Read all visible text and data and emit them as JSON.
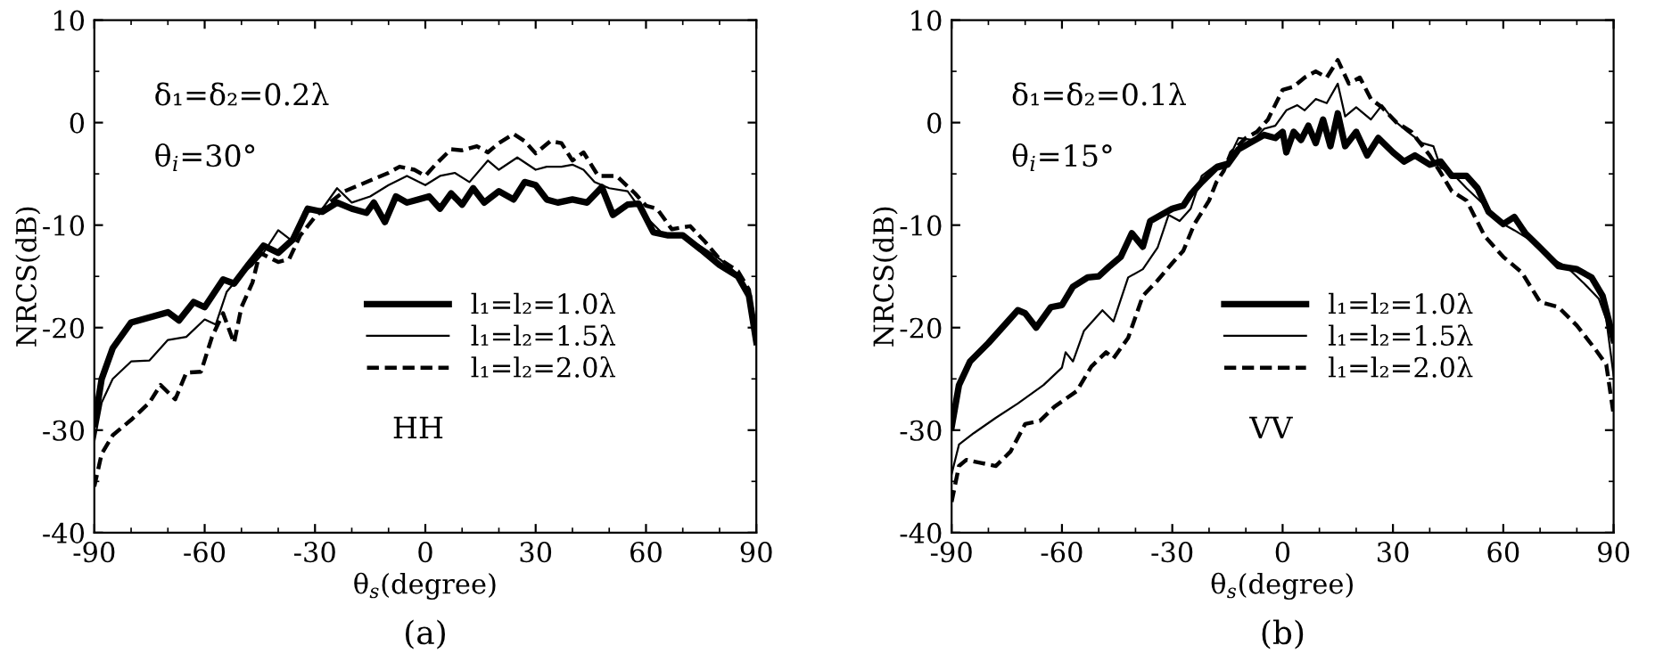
{
  "chart_data": [
    {
      "type": "line",
      "xlabel": "θ$_{s}$(degree)",
      "ylabel": "NRCS(dB)",
      "xlim": [
        -90,
        90
      ],
      "ylim": [
        -40,
        10
      ],
      "xticks": [
        -90,
        -60,
        -30,
        0,
        30,
        60,
        90
      ],
      "yticks": [
        -40,
        -30,
        -20,
        -10,
        0,
        10
      ],
      "grid": false,
      "legend": "center",
      "marker": "none",
      "annotations": [
        "δ₁=δ₂=0.2λ",
        "θ$_{i}$=30°",
        "HH",
        "(a)"
      ],
      "series": [
        {
          "name": "l₁=l₂=1.0λ",
          "color": "#000000",
          "line_style": "solid",
          "x": [
            -90,
            -88,
            -85,
            -80,
            -75,
            -70,
            -67,
            -63,
            -60,
            -55,
            -52,
            -48,
            -44,
            -40,
            -36,
            -32,
            -28,
            -24,
            -20,
            -16,
            -14,
            -11,
            -8,
            -5,
            -2,
            1,
            4,
            7,
            10,
            13,
            16,
            20,
            24,
            27,
            30,
            33,
            36,
            40,
            44,
            48,
            51,
            55,
            58,
            62,
            66,
            70,
            75,
            80,
            85,
            88,
            90
          ],
          "values": [
            -29.4,
            -25,
            -22,
            -19.5,
            -19,
            -18.5,
            -19.3,
            -17.5,
            -18,
            -15.3,
            -15.7,
            -13.8,
            -12,
            -12.7,
            -11.4,
            -8.4,
            -8.7,
            -7.8,
            -8.4,
            -8.8,
            -7.8,
            -9.7,
            -7.2,
            -7.8,
            -7.5,
            -7.2,
            -8.4,
            -6.9,
            -8,
            -6.4,
            -7.8,
            -6.7,
            -7.5,
            -5.8,
            -6.1,
            -7.5,
            -7.8,
            -7.5,
            -7.8,
            -6.3,
            -9,
            -8,
            -7.9,
            -10.7,
            -11,
            -11,
            -12.4,
            -13.9,
            -15,
            -16.9,
            -21.4
          ]
        },
        {
          "name": "l₁=l₂=1.5λ",
          "color": "#000000",
          "line_style": "solid",
          "x": [
            -90,
            -88,
            -85,
            -80,
            -75,
            -70,
            -65,
            -60,
            -57,
            -54,
            -50,
            -47,
            -44,
            -40,
            -36,
            -33,
            -28,
            -24,
            -20,
            -15,
            -10,
            -5,
            0,
            4,
            8,
            12,
            17,
            20,
            25,
            30,
            33,
            37,
            40,
            43,
            46,
            50,
            55,
            60,
            65,
            70,
            75,
            80,
            85,
            88,
            90
          ],
          "values": [
            -31.1,
            -27.3,
            -25,
            -23.3,
            -23.2,
            -21.2,
            -20.9,
            -19.2,
            -19.7,
            -16.5,
            -14.8,
            -13.9,
            -12.7,
            -10.5,
            -11.6,
            -8.7,
            -8.4,
            -6.4,
            -7.8,
            -7.2,
            -6.1,
            -5.2,
            -6.1,
            -5.2,
            -4.9,
            -5.8,
            -3.7,
            -4.6,
            -3.4,
            -4.6,
            -4.3,
            -4.3,
            -4.1,
            -4.6,
            -5.8,
            -6.4,
            -6.7,
            -9.2,
            -11,
            -11,
            -12.1,
            -13.3,
            -14.8,
            -16.9,
            -20.9
          ]
        },
        {
          "name": "l₁=l₂=2.0λ",
          "color": "#000000",
          "line_style": "dashed",
          "x": [
            -90,
            -88,
            -85,
            -80,
            -75,
            -72,
            -68,
            -65,
            -61,
            -58,
            -55,
            -52,
            -50,
            -47,
            -45,
            -40,
            -37,
            -34,
            -30,
            -26,
            -22,
            -18,
            -14,
            -10,
            -7,
            -3,
            0,
            3,
            7,
            10,
            14,
            17,
            20,
            24,
            27,
            30,
            34,
            37,
            40,
            43,
            47,
            52,
            57,
            60,
            63,
            67,
            72,
            76,
            80,
            85,
            88,
            90
          ],
          "values": [
            -35.5,
            -32.3,
            -30.5,
            -29,
            -27.3,
            -25.6,
            -27,
            -24.4,
            -24.3,
            -20.9,
            -18.6,
            -21.5,
            -18,
            -15.6,
            -12.7,
            -13.6,
            -13.3,
            -11,
            -9.2,
            -7.8,
            -6.7,
            -6.1,
            -5.5,
            -4.9,
            -4.3,
            -4.6,
            -5.2,
            -4,
            -2.6,
            -2.7,
            -2.3,
            -2.9,
            -2,
            -1.1,
            -1.8,
            -3,
            -1.8,
            -2,
            -3.7,
            -2.9,
            -5.2,
            -5.2,
            -6.9,
            -8.1,
            -8.4,
            -10.4,
            -10.1,
            -11.6,
            -13.3,
            -14.5,
            -16.3,
            -21.2
          ]
        }
      ]
    },
    {
      "type": "line",
      "xlabel": "θ$_{s}$(degree)",
      "ylabel": "NRCS(dB)",
      "xlim": [
        -90,
        90
      ],
      "ylim": [
        -40,
        10
      ],
      "xticks": [
        -90,
        -60,
        -30,
        0,
        30,
        60,
        90
      ],
      "yticks": [
        -40,
        -30,
        -20,
        -10,
        0,
        10
      ],
      "grid": false,
      "legend": "center",
      "marker": "none",
      "annotations": [
        "δ₁=δ₂=0.1λ",
        "θ$_{i}$=15°",
        "VV",
        "(b)"
      ],
      "series": [
        {
          "name": "l₁=l₂=1.0λ",
          "color": "#000000",
          "line_style": "solid",
          "x": [
            -90,
            -88,
            -85,
            -80,
            -75,
            -72,
            -70,
            -67,
            -63,
            -60,
            -57,
            -53,
            -50,
            -47,
            -44,
            -41,
            -38,
            -36,
            -33,
            -30,
            -27,
            -25,
            -22,
            -18,
            -15,
            -12,
            -9,
            -5,
            -2,
            0,
            1,
            3,
            5,
            7,
            9,
            11,
            13,
            15,
            17,
            20,
            23,
            26,
            30,
            33,
            36,
            40,
            43,
            46,
            50,
            53,
            56,
            60,
            63,
            66,
            70,
            75,
            80,
            84,
            87,
            90
          ],
          "values": [
            -29.7,
            -25.6,
            -23.3,
            -21.5,
            -19.5,
            -18.3,
            -18.6,
            -20,
            -18,
            -17.8,
            -16,
            -15.1,
            -15,
            -14,
            -13.1,
            -10.8,
            -12.1,
            -9.6,
            -9,
            -8.4,
            -8.1,
            -7,
            -5.8,
            -4.4,
            -4.1,
            -2.6,
            -2,
            -1.2,
            -1.5,
            -0.9,
            -2.9,
            -0.9,
            -1.7,
            -0.3,
            -2,
            0.3,
            -2.3,
            0.9,
            -2.3,
            -0.9,
            -3.2,
            -1.5,
            -2.9,
            -3.8,
            -3.2,
            -4.1,
            -3.8,
            -5.2,
            -5.2,
            -6.4,
            -8.7,
            -9.9,
            -9.2,
            -10.8,
            -12.2,
            -14,
            -14.3,
            -15.1,
            -16.9,
            -21.2
          ]
        },
        {
          "name": "l₁=l₂=1.5λ",
          "color": "#000000",
          "line_style": "solid",
          "x": [
            -90,
            -88,
            -84,
            -78,
            -72,
            -65,
            -60,
            -59,
            -57,
            -54,
            -49,
            -46,
            -42,
            -38,
            -34,
            -31,
            -28,
            -25,
            -22,
            -18,
            -15,
            -12,
            -8,
            -5,
            -2,
            1,
            4,
            6,
            9,
            12,
            15,
            17,
            20,
            24,
            27,
            30,
            34,
            38,
            41,
            43,
            46,
            50,
            55,
            60,
            63,
            68,
            72,
            77,
            82,
            86,
            88,
            90
          ],
          "values": [
            -34.3,
            -31.4,
            -30.3,
            -28.8,
            -27.4,
            -25.6,
            -23.9,
            -22.4,
            -23.3,
            -20.3,
            -18.3,
            -19.4,
            -15.1,
            -14.3,
            -12.2,
            -9,
            -9.6,
            -8.4,
            -5.2,
            -4.1,
            -3.8,
            -1.5,
            -1.7,
            -0.6,
            -0.3,
            1.2,
            1.7,
            1.2,
            2.3,
            1.9,
            3.8,
            0.6,
            1.5,
            0.3,
            1.7,
            0.3,
            -0.9,
            -2,
            -2.3,
            -4.4,
            -4.9,
            -6.4,
            -8.1,
            -9.9,
            -10.5,
            -11.6,
            -13.1,
            -14,
            -15.7,
            -17.2,
            -19.2,
            -24.7
          ]
        },
        {
          "name": "l₁=l₂=2.0λ",
          "color": "#000000",
          "line_style": "dashed",
          "x": [
            -90,
            -88,
            -86,
            -82,
            -78,
            -74,
            -70,
            -66,
            -62,
            -56,
            -52,
            -48,
            -46,
            -42,
            -38,
            -34,
            -30,
            -27,
            -24,
            -20,
            -18,
            -16,
            -14,
            -10,
            -7,
            -4,
            0,
            3,
            6,
            9,
            12,
            15,
            18,
            21,
            24,
            27,
            31,
            35,
            40,
            43,
            46,
            50,
            55,
            60,
            65,
            70,
            75,
            80,
            85,
            88,
            90
          ],
          "values": [
            -37,
            -33.5,
            -32.9,
            -33.2,
            -33.5,
            -32.1,
            -29.4,
            -29.1,
            -27.7,
            -26.2,
            -23.8,
            -22.4,
            -23,
            -21,
            -16.9,
            -15.4,
            -13.7,
            -12.5,
            -9.9,
            -7.6,
            -5.8,
            -4.7,
            -2.9,
            -1.5,
            -0.9,
            0.3,
            3.2,
            3.5,
            4.4,
            5,
            4.4,
            6.1,
            3.8,
            4.4,
            2.3,
            1.5,
            0,
            -0.9,
            -3.2,
            -4.9,
            -6.7,
            -7.6,
            -11.1,
            -13.1,
            -14.6,
            -17.5,
            -18,
            -19.8,
            -22.1,
            -23.6,
            -28.5
          ]
        }
      ]
    }
  ]
}
